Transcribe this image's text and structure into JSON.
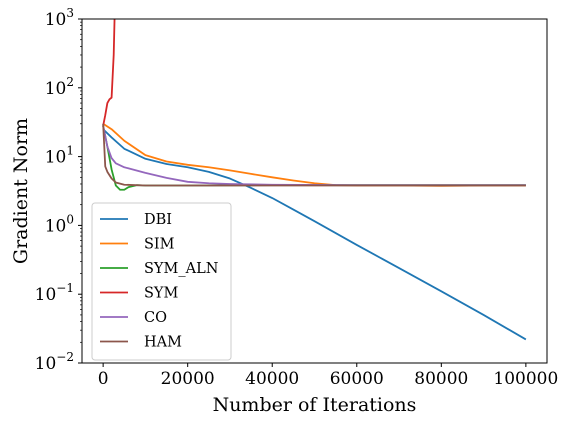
{
  "chart_data": {
    "type": "line",
    "title": "",
    "xlabel": "Number of Iterations",
    "ylabel": "Gradient Norm",
    "xlim": [
      -5000,
      105000
    ],
    "ylim": [
      0.01,
      1000
    ],
    "yscale": "log",
    "grid": false,
    "legend_position": "lower-left",
    "x_ticks": [
      0,
      20000,
      40000,
      60000,
      80000,
      100000
    ],
    "x_tick_labels": [
      "0",
      "20000",
      "40000",
      "60000",
      "80000",
      "100000"
    ],
    "y_ticks": [
      0.01,
      0.1,
      1,
      10,
      100,
      1000
    ],
    "y_tick_labels": [
      {
        "base": "10",
        "exp": "−2"
      },
      {
        "base": "10",
        "exp": "−1"
      },
      {
        "base": "10",
        "exp": "0"
      },
      {
        "base": "10",
        "exp": "1"
      },
      {
        "base": "10",
        "exp": "2"
      },
      {
        "base": "10",
        "exp": "3"
      }
    ],
    "series": [
      {
        "name": "DBI",
        "color": "#1f77b4",
        "points": [
          [
            0,
            25
          ],
          [
            2000,
            19
          ],
          [
            5000,
            13
          ],
          [
            10000,
            9.3
          ],
          [
            15000,
            7.8
          ],
          [
            20000,
            7.0
          ],
          [
            25000,
            6.0
          ],
          [
            30000,
            4.8
          ],
          [
            35000,
            3.5
          ],
          [
            40000,
            2.5
          ],
          [
            45000,
            1.7
          ],
          [
            50000,
            1.15
          ],
          [
            60000,
            0.52
          ],
          [
            70000,
            0.24
          ],
          [
            80000,
            0.11
          ],
          [
            90000,
            0.05
          ],
          [
            100000,
            0.022
          ]
        ]
      },
      {
        "name": "SIM",
        "color": "#ff7f0e",
        "points": [
          [
            0,
            30
          ],
          [
            2000,
            25
          ],
          [
            5000,
            17
          ],
          [
            10000,
            10.5
          ],
          [
            15000,
            8.5
          ],
          [
            20000,
            7.6
          ],
          [
            25000,
            7.0
          ],
          [
            30000,
            6.3
          ],
          [
            35000,
            5.6
          ],
          [
            40000,
            5.0
          ],
          [
            45000,
            4.5
          ],
          [
            50000,
            4.1
          ],
          [
            55000,
            3.85
          ],
          [
            60000,
            3.8
          ],
          [
            70000,
            3.8
          ],
          [
            80000,
            3.75
          ],
          [
            90000,
            3.8
          ],
          [
            100000,
            3.8
          ]
        ]
      },
      {
        "name": "SYM_ALN",
        "color": "#2ca02c",
        "points": [
          [
            0,
            28
          ],
          [
            1000,
            14
          ],
          [
            2000,
            6.5
          ],
          [
            3000,
            3.8
          ],
          [
            4000,
            3.3
          ],
          [
            5000,
            3.3
          ],
          [
            6000,
            3.6
          ],
          [
            8000,
            3.85
          ],
          [
            10000,
            3.8
          ],
          [
            20000,
            3.8
          ],
          [
            40000,
            3.85
          ],
          [
            60000,
            3.85
          ],
          [
            80000,
            3.85
          ],
          [
            100000,
            3.85
          ]
        ]
      },
      {
        "name": "SYM",
        "color": "#d62728",
        "points": [
          [
            0,
            28
          ],
          [
            500,
            40
          ],
          [
            1000,
            60
          ],
          [
            1500,
            68
          ],
          [
            2000,
            72
          ],
          [
            2500,
            300
          ],
          [
            2700,
            1000
          ]
        ]
      },
      {
        "name": "CO",
        "color": "#9467bd",
        "points": [
          [
            0,
            28
          ],
          [
            1000,
            14
          ],
          [
            2000,
            9.5
          ],
          [
            3000,
            8.0
          ],
          [
            5000,
            7.0
          ],
          [
            10000,
            5.8
          ],
          [
            15000,
            4.9
          ],
          [
            20000,
            4.3
          ],
          [
            25000,
            4.1
          ],
          [
            30000,
            4.0
          ],
          [
            40000,
            3.9
          ],
          [
            60000,
            3.85
          ],
          [
            80000,
            3.85
          ],
          [
            100000,
            3.85
          ]
        ]
      },
      {
        "name": "HAM",
        "color": "#8c564b",
        "points": [
          [
            0,
            30
          ],
          [
            500,
            7.2
          ],
          [
            1000,
            6.0
          ],
          [
            2000,
            4.8
          ],
          [
            3000,
            4.2
          ],
          [
            5000,
            3.9
          ],
          [
            10000,
            3.8
          ],
          [
            20000,
            3.8
          ],
          [
            40000,
            3.8
          ],
          [
            60000,
            3.8
          ],
          [
            80000,
            3.8
          ],
          [
            100000,
            3.8
          ]
        ]
      }
    ]
  }
}
